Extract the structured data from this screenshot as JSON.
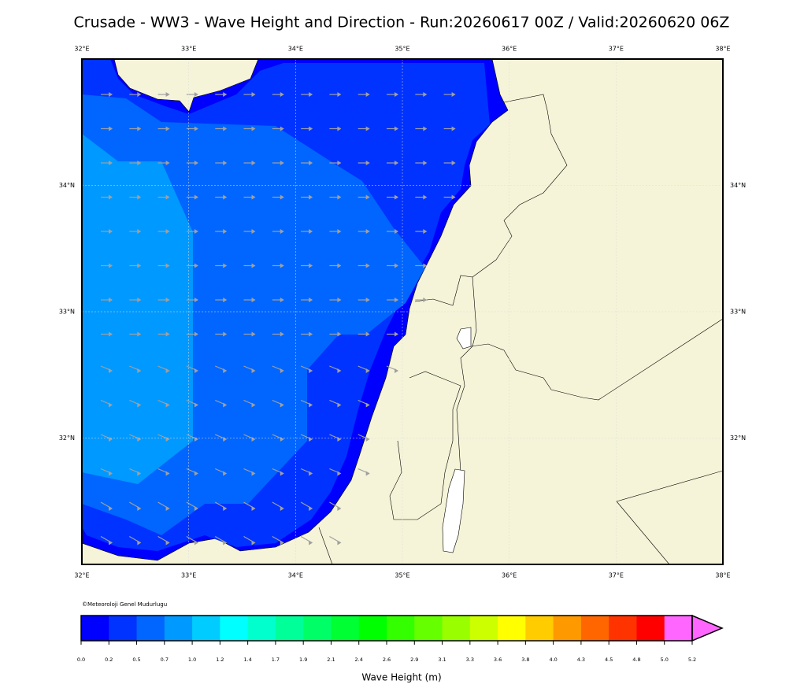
{
  "title": "Crusade - WW3 - Wave Height and Direction - Run:20260617 00Z / Valid:20260620 06Z",
  "map": {
    "lonlim": [
      32,
      38
    ],
    "latlim": [
      31,
      35
    ],
    "lon_ticks": [
      {
        "value": 32,
        "label": "32°E"
      },
      {
        "value": 33,
        "label": "33°E"
      },
      {
        "value": 34,
        "label": "34°E"
      },
      {
        "value": 35,
        "label": "35°E"
      },
      {
        "value": 36,
        "label": "36°E"
      },
      {
        "value": 37,
        "label": "37°E"
      },
      {
        "value": 38,
        "label": "38°E"
      }
    ],
    "lat_ticks": [
      {
        "value": 32,
        "label": "32°N"
      },
      {
        "value": 33,
        "label": "33°N"
      },
      {
        "value": 34,
        "label": "34°N"
      }
    ],
    "credit": "©Meteoroloji Genel Mudurlugu"
  },
  "colorbar": {
    "label": "Wave Height (m)",
    "ticks": [
      {
        "value": 0,
        "label": "0.0"
      },
      0.2,
      0.5,
      0.7,
      {
        "value": 1,
        "label": "1.0"
      },
      1.2,
      1.4,
      1.7,
      1.9,
      2.1,
      2.4,
      2.6,
      2.9,
      3.1,
      3.3,
      3.6,
      3.8,
      {
        "value": 4,
        "label": "4.0"
      },
      4.3,
      4.5,
      4.8,
      {
        "value": 5,
        "label": "5.0"
      },
      5.2
    ],
    "colors": [
      "#0000ff",
      "#0033ff",
      "#0066ff",
      "#0099ff",
      "#00ccff",
      "#00ffff",
      "#00ffcc",
      "#00ff99",
      "#00ff66",
      "#00ff33",
      "#00ff00",
      "#33ff00",
      "#66ff00",
      "#99ff00",
      "#ccff00",
      "#ffff00",
      "#ffcc00",
      "#ff9900",
      "#ff6600",
      "#ff3300",
      "#ff0000",
      "#ff66ff"
    ]
  }
}
